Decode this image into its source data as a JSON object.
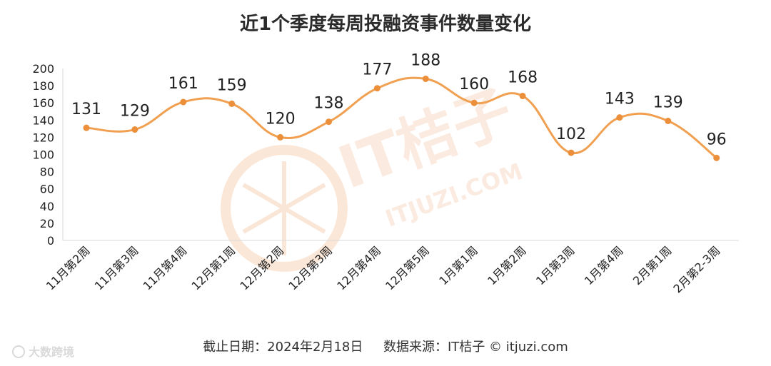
{
  "chart_data": {
    "type": "line",
    "title": "近1个季度每周投融资事件数量变化",
    "categories": [
      "11月第2周",
      "11月第3周",
      "11月第4周",
      "12月第1周",
      "12月第2周",
      "12月第3周",
      "12月第4周",
      "12月第5周",
      "1月第1周",
      "1月第2周",
      "1月第3周",
      "1月第4周",
      "2月第1周",
      "2月第2-3周"
    ],
    "series": [
      {
        "values": [
          131,
          129,
          161,
          159,
          120,
          138,
          177,
          188,
          160,
          168,
          102,
          143,
          139,
          96
        ]
      }
    ],
    "ylim": [
      0,
      200
    ],
    "yticks": [
      0,
      20,
      40,
      60,
      80,
      100,
      120,
      140,
      160,
      180,
      200
    ],
    "grid": false,
    "legend": "none"
  },
  "footer": {
    "text": "截止日期：2024年2月18日     数据来源：IT桔子 © itjuzi.com"
  },
  "watermark": {
    "brand": "IT桔子",
    "url": "ITJUZI.COM"
  },
  "corner_watermark": "大数跨境",
  "colors": {
    "line": "#f0a050",
    "marker": "#ec8f3a",
    "axis": "#d9d9d9"
  }
}
